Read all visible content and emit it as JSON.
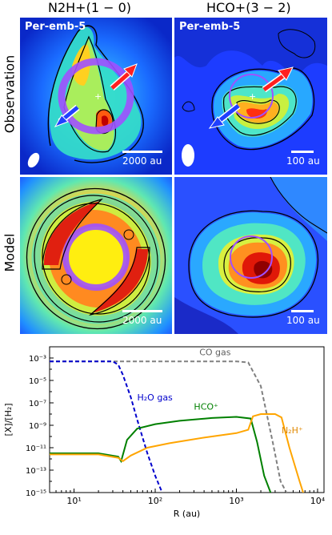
{
  "columns": [
    {
      "title": "N$_2$H$^+$(1 − 0)",
      "display": "N2H+(1 − 0)"
    },
    {
      "title": "HCO$^+$(3 − 2)",
      "display": "HCO+(3 − 2)"
    }
  ],
  "rows": [
    {
      "label": "Observation"
    },
    {
      "label": "Model"
    }
  ],
  "panels": [
    {
      "source": "Per-emb-5",
      "scale": "2000 au"
    },
    {
      "source": "Per-emb-5",
      "scale": "100 au"
    },
    {
      "source": "",
      "scale": "2000 au"
    },
    {
      "source": "",
      "scale": "100 au"
    }
  ],
  "chart_data": {
    "type": "line",
    "xlabel": "R (au)",
    "ylabel": "[X]/[H$_2$]",
    "xscale": "log",
    "yscale": "log",
    "xlim": [
      5,
      12000
    ],
    "ylim": [
      1e-15,
      0.01
    ],
    "x_ticks": [
      "10$^1$",
      "10$^2$",
      "10$^3$",
      "10$^4$"
    ],
    "y_ticks": [
      "10$^{-15}$",
      "10$^{-13}$",
      "10$^{-11}$",
      "10$^{-9}$",
      "10$^{-7}$",
      "10$^{-5}$",
      "10$^{-3}$"
    ],
    "x_tick_labels": [
      "10¹",
      "10²",
      "10³",
      "10⁴"
    ],
    "y_tick_labels": [
      "10⁻¹⁵",
      "10⁻¹³",
      "10⁻¹¹",
      "10⁻⁹",
      "10⁻⁷",
      "10⁻⁵",
      "10⁻³"
    ],
    "series": [
      {
        "name": "CO gas",
        "color": "#808080",
        "style": "dashed",
        "x": [
          5,
          100,
          1000,
          1400,
          2000,
          2800,
          3500,
          4500
        ],
        "y": [
          -3.3,
          -3.3,
          -3.3,
          -3.4,
          -5.5,
          -10.5,
          -14.0,
          -15.5
        ]
      },
      {
        "name": "H$_2$O gas",
        "display": "H₂O gas",
        "color": "#0000cc",
        "style": "dashed",
        "x": [
          5,
          30,
          35,
          40,
          50,
          60,
          80,
          100,
          130
        ],
        "y": [
          -3.3,
          -3.3,
          -3.6,
          -4.5,
          -6.5,
          -8.5,
          -11.5,
          -13.5,
          -15.5
        ]
      },
      {
        "name": "HCO$^+$",
        "display": "HCO⁺",
        "color": "#008000",
        "style": "solid",
        "x": [
          5,
          20,
          35,
          38,
          45,
          60,
          100,
          200,
          500,
          1000,
          1500,
          1800,
          2200,
          2800
        ],
        "y": [
          -11.5,
          -11.5,
          -11.8,
          -12.2,
          -10.3,
          -9.3,
          -8.9,
          -8.6,
          -8.35,
          -8.25,
          -8.4,
          -10.5,
          -13.5,
          -15.5
        ]
      },
      {
        "name": "N$_2$H$^+$",
        "display": "N₂H⁺",
        "color": "#ffa500",
        "style": "solid",
        "x": [
          5,
          20,
          35,
          40,
          50,
          80,
          150,
          400,
          1000,
          1400,
          1600,
          2000,
          3000,
          3600,
          4500,
          6000,
          7000
        ],
        "y": [
          -11.6,
          -11.6,
          -11.9,
          -12.2,
          -11.7,
          -11.0,
          -10.6,
          -10.1,
          -9.7,
          -9.4,
          -8.2,
          -8.0,
          -8.0,
          -8.3,
          -11,
          -14,
          -15.5
        ]
      }
    ],
    "annotations": [
      "CO gas",
      "H₂O gas",
      "HCO⁺",
      "N₂H⁺"
    ]
  }
}
